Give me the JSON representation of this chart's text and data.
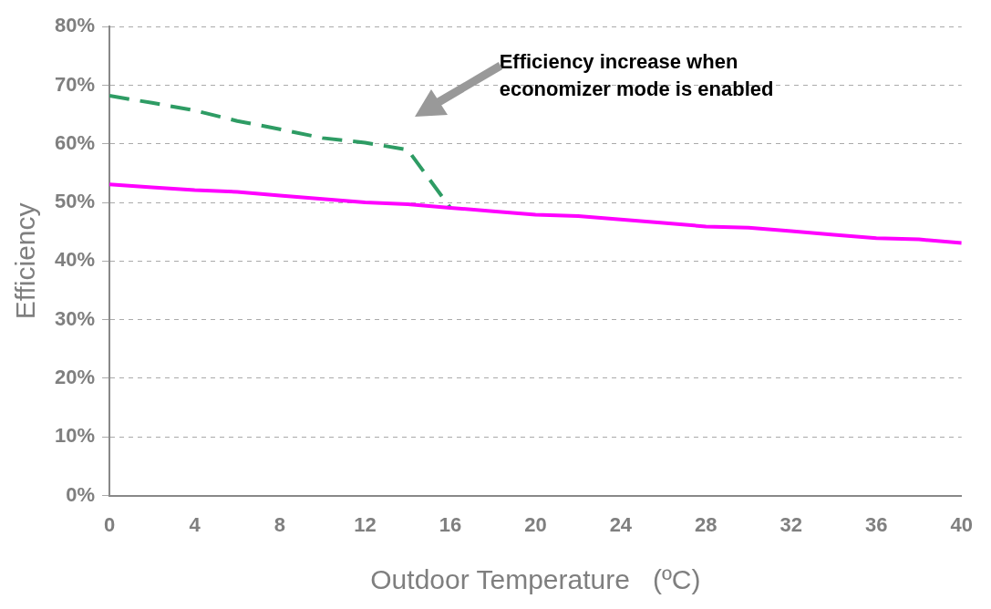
{
  "chart_data": {
    "type": "line",
    "xlabel": "Outdoor Temperature   (ºC)",
    "ylabel": "Efficiency",
    "annotations": [
      "Efficiency increase when economizer mode is enabled"
    ],
    "series": [
      {
        "color": "#ff00ff",
        "line_style": "solid",
        "x": [
          0,
          2,
          4,
          6,
          8,
          10,
          12,
          14,
          16,
          18,
          20,
          22,
          24,
          26,
          28,
          30,
          32,
          34,
          36,
          38,
          40
        ],
        "values": [
          53.1,
          52.6,
          52.1,
          51.8,
          51.2,
          50.6,
          50.0,
          49.7,
          49.1,
          48.5,
          47.9,
          47.7,
          47.1,
          46.5,
          45.9,
          45.7,
          45.1,
          44.5,
          43.9,
          43.7,
          43.1
        ]
      },
      {
        "color": "#2e9c64",
        "line_style": "dashed",
        "x": [
          0,
          2,
          4,
          6,
          8,
          10,
          12,
          14,
          16
        ],
        "values": [
          68.2,
          67.0,
          65.7,
          63.9,
          62.5,
          61.0,
          60.2,
          59.0,
          49.1
        ]
      }
    ],
    "xlim": [
      0,
      40
    ],
    "xticks": [
      0,
      4,
      8,
      12,
      16,
      20,
      24,
      28,
      32,
      36,
      40
    ],
    "ylim": [
      0,
      80
    ],
    "yticks": [
      {
        "value": 0,
        "label": "0%"
      },
      {
        "value": 10,
        "label": "10%"
      },
      {
        "value": 20,
        "label": "20%"
      },
      {
        "value": 30,
        "label": "30%"
      },
      {
        "value": 40,
        "label": "40%"
      },
      {
        "value": 50,
        "label": "50%"
      },
      {
        "value": 60,
        "label": "60%"
      },
      {
        "value": 70,
        "label": "70%"
      },
      {
        "value": 80,
        "label": "80%"
      }
    ],
    "grid": "y",
    "legend": false,
    "marker": "none"
  }
}
